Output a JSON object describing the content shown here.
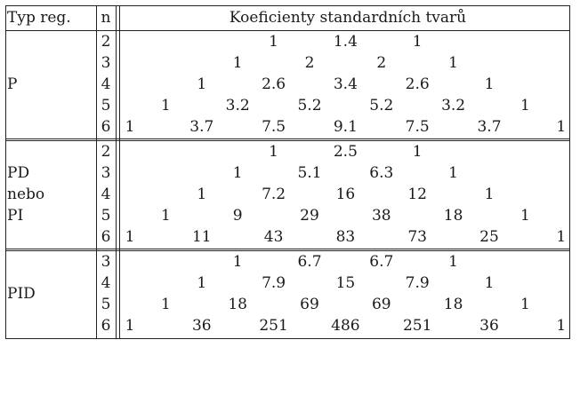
{
  "header": {
    "type": "Typ reg.",
    "n": "n",
    "coefficients": "Koeficienty standardních tvarů"
  },
  "groups": [
    {
      "type_lines": [
        "P"
      ],
      "rows": [
        {
          "n": "2",
          "values": [
            "1",
            "1.4",
            "1"
          ]
        },
        {
          "n": "3",
          "values": [
            "1",
            "2",
            "2",
            "1"
          ]
        },
        {
          "n": "4",
          "values": [
            "1",
            "2.6",
            "3.4",
            "2.6",
            "1"
          ]
        },
        {
          "n": "5",
          "values": [
            "1",
            "3.2",
            "5.2",
            "5.2",
            "3.2",
            "1"
          ]
        },
        {
          "n": "6",
          "values": [
            "1",
            "3.7",
            "7.5",
            "9.1",
            "7.5",
            "3.7",
            "1"
          ]
        }
      ]
    },
    {
      "type_lines": [
        "PD",
        "nebo",
        "PI"
      ],
      "rows": [
        {
          "n": "2",
          "values": [
            "1",
            "2.5",
            "1"
          ]
        },
        {
          "n": "3",
          "values": [
            "1",
            "5.1",
            "6.3",
            "1"
          ]
        },
        {
          "n": "4",
          "values": [
            "1",
            "7.2",
            "16",
            "12",
            "1"
          ]
        },
        {
          "n": "5",
          "values": [
            "1",
            "9",
            "29",
            "38",
            "18",
            "1"
          ]
        },
        {
          "n": "6",
          "values": [
            "1",
            "11",
            "43",
            "83",
            "73",
            "25",
            "1"
          ]
        }
      ]
    },
    {
      "type_lines": [
        "PID"
      ],
      "rows": [
        {
          "n": "3",
          "values": [
            "1",
            "6.7",
            "6.7",
            "1"
          ]
        },
        {
          "n": "4",
          "values": [
            "1",
            "7.9",
            "15",
            "7.9",
            "1"
          ]
        },
        {
          "n": "5",
          "values": [
            "1",
            "18",
            "69",
            "69",
            "18",
            "1"
          ]
        },
        {
          "n": "6",
          "values": [
            "1",
            "36",
            "251",
            "486",
            "251",
            "36",
            "1"
          ]
        }
      ]
    }
  ]
}
